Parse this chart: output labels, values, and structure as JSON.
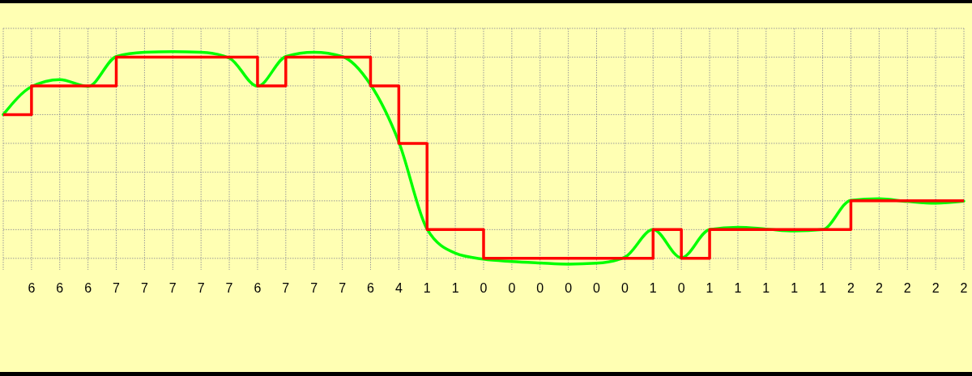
{
  "chart_data": {
    "type": "step",
    "categories": [
      null,
      null,
      null,
      null,
      null,
      null,
      null,
      null,
      null,
      null,
      null,
      null,
      null,
      null,
      null,
      null,
      null,
      null,
      null,
      null,
      null,
      null,
      null,
      null,
      null,
      null,
      null,
      null,
      null,
      null,
      null,
      null,
      null,
      null,
      null
    ],
    "ylim": [
      -0.4,
      8
    ],
    "yticks": [
      {
        "value": 0,
        "label": null
      },
      {
        "value": 1,
        "label": null
      },
      {
        "value": 2,
        "label": null
      },
      {
        "value": 3,
        "label": null
      },
      {
        "value": 4,
        "label": null
      },
      {
        "value": 5,
        "label": null
      },
      {
        "value": 6,
        "label": null
      },
      {
        "value": 7,
        "label": null
      },
      {
        "value": 8,
        "label": null
      }
    ],
    "grid": true,
    "series": [
      {
        "type": "line",
        "color": "#00ff00",
        "values": [
          5.0,
          5.97,
          6.22,
          5.98,
          7.02,
          7.17,
          7.19,
          7.17,
          6.97,
          5.99,
          7.02,
          7.17,
          7.02,
          6.04,
          4.05,
          1.02,
          0.18,
          -0.03,
          -0.11,
          -0.16,
          -0.2,
          -0.17,
          0.04,
          1.0,
          0.02,
          1.0,
          1.08,
          1.02,
          0.95,
          1.0,
          2.02,
          2.07,
          1.98,
          1.92,
          1.99
        ]
      },
      {
        "color": "#ff0000",
        "values": [
          5,
          6,
          6,
          6,
          7,
          7,
          7,
          7,
          7,
          6,
          7,
          7,
          7,
          6,
          4,
          1,
          1,
          0,
          0,
          0,
          0,
          0,
          0,
          1,
          0,
          1,
          1,
          1,
          1,
          1,
          2,
          2,
          2,
          2,
          2
        ],
        "value_labels": [
          null,
          "6",
          "6",
          "6",
          "7",
          "7",
          "7",
          "7",
          "7",
          "6",
          "7",
          "7",
          "7",
          "6",
          "4",
          "1",
          "1",
          "0",
          "0",
          "0",
          "0",
          "0",
          "0",
          "1",
          "0",
          "1",
          "1",
          "1",
          "1",
          "1",
          "2",
          "2",
          "2",
          "2",
          "2"
        ]
      }
    ]
  }
}
